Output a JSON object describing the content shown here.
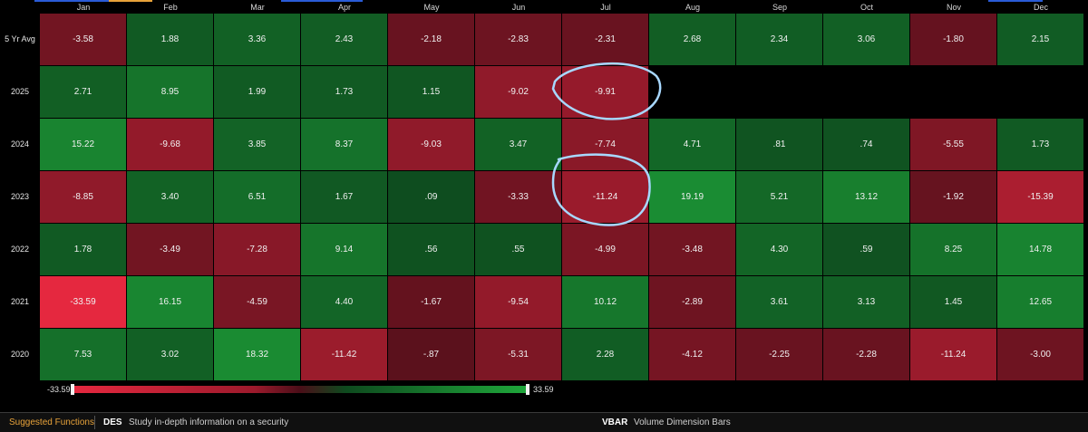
{
  "chart_data": {
    "type": "heatmap",
    "columns": [
      "Jan",
      "Feb",
      "Mar",
      "Apr",
      "May",
      "Jun",
      "Jul",
      "Aug",
      "Sep",
      "Oct",
      "Nov",
      "Dec"
    ],
    "rows": [
      {
        "label": "5 Yr Avg",
        "values": [
          "-3.58",
          "1.88",
          "3.36",
          "2.43",
          "-2.18",
          "-2.83",
          "-2.31",
          "2.68",
          "2.34",
          "3.06",
          "-1.80",
          "2.15"
        ]
      },
      {
        "label": "2025",
        "values": [
          "2.71",
          "8.95",
          "1.99",
          "1.73",
          "1.15",
          "-9.02",
          "-9.91",
          null,
          null,
          null,
          null,
          null
        ]
      },
      {
        "label": "2024",
        "values": [
          "15.22",
          "-9.68",
          "3.85",
          "8.37",
          "-9.03",
          "3.47",
          "-7.74",
          "4.71",
          ".81",
          ".74",
          "-5.55",
          "1.73"
        ]
      },
      {
        "label": "2023",
        "values": [
          "-8.85",
          "3.40",
          "6.51",
          "1.67",
          ".09",
          "-3.33",
          "-11.24",
          "19.19",
          "5.21",
          "13.12",
          "-1.92",
          "-15.39"
        ]
      },
      {
        "label": "2022",
        "values": [
          "1.78",
          "-3.49",
          "-7.28",
          "9.14",
          ".56",
          ".55",
          "-4.99",
          "-3.48",
          "4.30",
          ".59",
          "8.25",
          "14.78"
        ]
      },
      {
        "label": "2021",
        "values": [
          "-33.59",
          "16.15",
          "-4.59",
          "4.40",
          "-1.67",
          "-9.54",
          "10.12",
          "-2.89",
          "3.61",
          "3.13",
          "1.45",
          "12.65"
        ]
      },
      {
        "label": "2020",
        "values": [
          "7.53",
          "3.02",
          "18.32",
          "-11.42",
          "-.87",
          "-5.31",
          "2.28",
          "-4.12",
          "-2.25",
          "-2.28",
          "-11.24",
          "-3.00"
        ]
      }
    ],
    "scale": {
      "min": "-33.59",
      "max": "33.59"
    },
    "colors": {
      "negative": "#e5283f",
      "positive": "#1fa73b",
      "neutral_neg": "#4a0e18",
      "neutral_pos": "#0e4a1e",
      "annotation": "#a8d8ff"
    },
    "annotations": [
      "circle around 2025 Jul",
      "circle around 2023 Jul"
    ]
  },
  "footer": {
    "suggested": "Suggested Functions",
    "items": [
      {
        "code": "DES",
        "desc": "Study in-depth information on a security"
      },
      {
        "code": "VBAR",
        "desc": "Volume Dimension Bars"
      }
    ]
  }
}
